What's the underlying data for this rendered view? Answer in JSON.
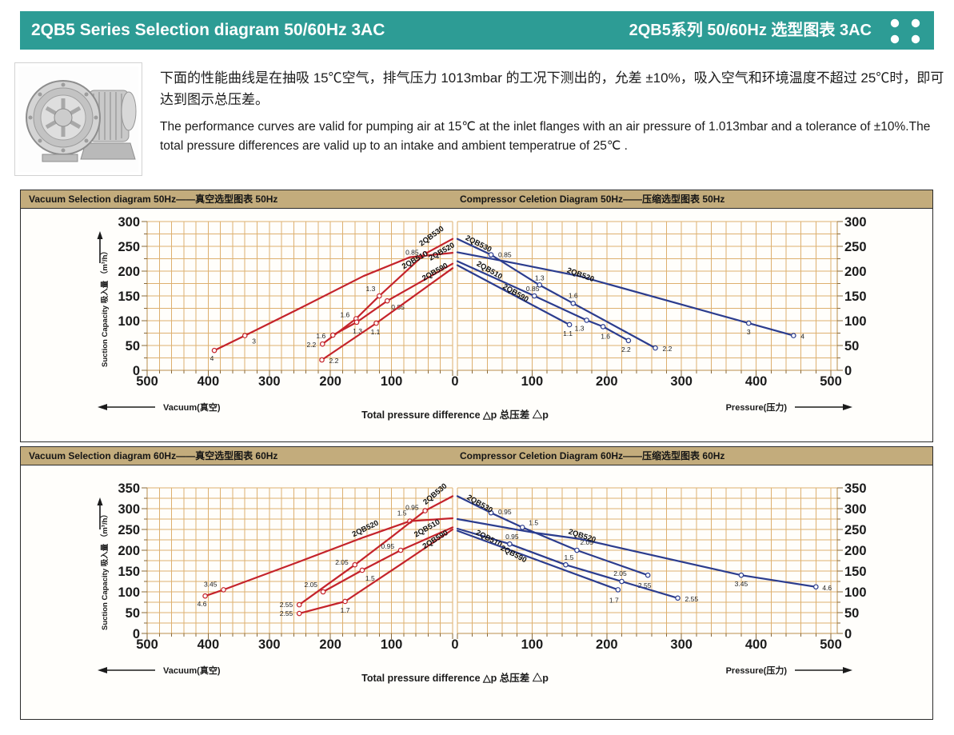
{
  "header": {
    "title_en": "2QB5 Series Selection diagram 50/60Hz 3AC",
    "title_zh": "2QB5系列 50/60Hz 选型图表 3AC"
  },
  "intro": {
    "zh": "下面的性能曲线是在抽吸 15℃空气，排气压力 1013mbar 的工况下测出的，允差 ±10%，吸入空气和环境温度不超过 25℃时，即可达到图示总压差。",
    "en": "The performance curves are valid for pumping air at 15℃ at the inlet flanges with an air pressure of 1.013mbar and a tolerance of ±10%.The total pressure differences are valid up to an intake and ambient temperatrue of 25℃ ."
  },
  "axis_labels": {
    "y": "Suction Capacity 吸入量 （m³/h）",
    "vacuum": "Vacuum(真空)",
    "pressure": "Pressure(压力)",
    "center": "Total pressure difference △p 总压差 △p",
    "zero": "0"
  },
  "colors": {
    "teal": "#2d9c95",
    "strip": "#c3ac7c",
    "grid": "#ddb06f",
    "axis": "#b98e4e",
    "tick": "#8a6a3a",
    "red": "#c4232b",
    "blue": "#2b3c8e",
    "text": "#1b1b1b",
    "border": "#2b2b2b"
  },
  "chart_data": [
    {
      "type": "line",
      "title_left": "Vacuum Selection diagram 50Hz——真空选型图表 50Hz",
      "title_right": "Compressor Celetion Diagram 50Hz——压缩选型图表 50Hz",
      "y_max": 300,
      "y_tick_step": 50,
      "grid_y_step": 25,
      "x_max": 500,
      "x_tick_step": 100,
      "grid_x_step": 20,
      "x_ticks_vacuum": [
        500,
        400,
        300,
        200,
        100
      ],
      "x_ticks_pressure": [
        100,
        200,
        300,
        400,
        500
      ],
      "xlabel_unit": "mbar",
      "ylabel_unit": "m³/h",
      "vacuum_series": [
        {
          "name": "2QB520",
          "points": [
            [
              390,
              40
            ],
            [
              340,
              70
            ],
            [
              250,
              125
            ],
            [
              146,
              190
            ],
            [
              70,
              228
            ],
            [
              0,
              237
            ]
          ],
          "markers": [
            [
              390,
              40,
              "4",
              -3,
              13,
              "m"
            ],
            [
              340,
              70,
              "3",
              9,
              10,
              "s"
            ]
          ],
          "label": [
            36,
            221,
            -30
          ]
        },
        {
          "name": "2QB530",
          "points": [
            [
              213,
              53
            ],
            [
              158,
              104
            ],
            [
              120,
              150
            ],
            [
              45,
              235
            ],
            [
              0,
              265
            ]
          ],
          "markers": [
            [
              213,
              53,
              "2.2",
              -8,
              4,
              "e"
            ],
            [
              158,
              104,
              "1.6",
              -8,
              -2,
              "e"
            ],
            [
              120,
              150,
              "1.3",
              -5,
              -6,
              "e"
            ],
            [
              45,
              235,
              "0.85",
              -8,
              1,
              "e"
            ]
          ],
          "label": [
            51,
            250,
            -36
          ]
        },
        {
          "name": "2QB510",
          "points": [
            [
              196,
              71
            ],
            [
              157,
              97
            ],
            [
              107,
              140
            ],
            [
              0,
              215
            ]
          ],
          "markers": [
            [
              196,
              71,
              "1.6",
              -9,
              4,
              "e"
            ],
            [
              157,
              97,
              "1.3",
              1,
              14,
              "m"
            ],
            [
              107,
              140,
              "0.85",
              5,
              11,
              "s"
            ]
          ],
          "label": [
            80,
            204,
            -30
          ]
        },
        {
          "name": "2QB590",
          "points": [
            [
              214,
              21
            ],
            [
              125,
              95
            ],
            [
              45,
              166
            ],
            [
              0,
              206
            ]
          ],
          "markers": [
            [
              214,
              21,
              "2.2",
              9,
              4,
              "s"
            ],
            [
              125,
              95,
              "1.1",
              -1,
              14,
              "m"
            ]
          ],
          "label": [
            47,
            180,
            -30
          ]
        }
      ],
      "pressure_series": [
        {
          "name": "2QB520",
          "points": [
            [
              0,
              238
            ],
            [
              80,
              215
            ],
            [
              163,
              190
            ],
            [
              390,
              95
            ],
            [
              450,
              70
            ]
          ],
          "markers": [
            [
              390,
              95,
              "3",
              0,
              14,
              "m"
            ],
            [
              450,
              70,
              "4",
              9,
              4,
              "s"
            ]
          ],
          "label": [
            146,
            198,
            20
          ]
        },
        {
          "name": "2QB530",
          "points": [
            [
              0,
              265
            ],
            [
              45,
              233
            ],
            [
              110,
              172
            ],
            [
              155,
              135
            ],
            [
              265,
              45
            ]
          ],
          "markers": [
            [
              45,
              233,
              "0.85",
              9,
              3,
              "s"
            ],
            [
              110,
              172,
              "1.3",
              0,
              -6,
              "m"
            ],
            [
              155,
              135,
              "1.6",
              0,
              -7,
              "m"
            ],
            [
              265,
              45,
              "2.2",
              9,
              4,
              "s"
            ]
          ],
          "label": [
            10,
            264,
            27
          ]
        },
        {
          "name": "2QB510",
          "points": [
            [
              0,
              220
            ],
            [
              103,
              150
            ],
            [
              173,
              101
            ],
            [
              195,
              88
            ],
            [
              229,
              60
            ]
          ],
          "markers": [
            [
              103,
              150,
              "0.85",
              -2,
              -6,
              "m"
            ],
            [
              173,
              101,
              "1.3",
              -9,
              13,
              "m"
            ],
            [
              195,
              88,
              "1.6",
              3,
              15,
              "m"
            ],
            [
              229,
              60,
              "2.2",
              -3,
              14,
              "m"
            ]
          ],
          "label": [
            25,
            212,
            30
          ]
        },
        {
          "name": "2QB590",
          "points": [
            [
              0,
              212
            ],
            [
              150,
              92
            ]
          ],
          "markers": [
            [
              150,
              92,
              "1.1",
              -2,
              14,
              "m"
            ]
          ],
          "label": [
            60,
            166,
            30
          ]
        }
      ]
    },
    {
      "type": "line",
      "title_left": "Vacuum Selection diagram 60Hz——真空选型图表 60Hz",
      "title_right": "Compressor Celetion Diagram 60Hz——压缩选型图表 60Hz",
      "y_max": 350,
      "y_tick_step": 50,
      "grid_y_step": 25,
      "x_max": 500,
      "x_tick_step": 100,
      "grid_x_step": 20,
      "x_ticks_vacuum": [
        500,
        400,
        300,
        200,
        100
      ],
      "x_ticks_pressure": [
        100,
        200,
        300,
        400,
        500
      ],
      "xlabel_unit": "mbar",
      "ylabel_unit": "m³/h",
      "vacuum_series": [
        {
          "name": "2QB520",
          "points": [
            [
              405,
              90
            ],
            [
              375,
              105
            ],
            [
              250,
              173
            ],
            [
              146,
              231
            ],
            [
              70,
              270
            ],
            [
              0,
              277
            ]
          ],
          "markers": [
            [
              405,
              90,
              "4.6",
              -4,
              13,
              "m"
            ],
            [
              375,
              105,
              "3.45",
              -8,
              -4,
              "e"
            ],
            [
              70,
              270,
              "1.5",
              -4,
              -7,
              "e"
            ]
          ],
          "label": [
            162,
            232,
            -26
          ]
        },
        {
          "name": "2QB530",
          "points": [
            [
              251,
              69
            ],
            [
              160,
              165
            ],
            [
              100,
              232
            ],
            [
              45,
              295
            ],
            [
              0,
              330
            ]
          ],
          "markers": [
            [
              251,
              69,
              "2.55",
              -8,
              3,
              "e"
            ],
            [
              160,
              165,
              "2.05",
              -8,
              0,
              "e"
            ],
            [
              45,
              295,
              "0.95",
              -8,
              -1,
              "e"
            ]
          ],
          "label": [
            44,
            309,
            -40
          ]
        },
        {
          "name": "2QB510",
          "points": [
            [
              212,
              100
            ],
            [
              148,
              152
            ],
            [
              85,
              200
            ],
            [
              0,
              255
            ]
          ],
          "markers": [
            [
              212,
              100,
              "2.05",
              -7,
              -6,
              "e"
            ],
            [
              148,
              152,
              "1.5",
              4,
              13,
              "s"
            ],
            [
              85,
              200,
              "0.95",
              -8,
              -2,
              "e"
            ]
          ],
          "label": [
            60,
            231,
            -30
          ]
        },
        {
          "name": "2QB590",
          "points": [
            [
              251,
              48
            ],
            [
              176,
              77
            ],
            [
              85,
              166
            ],
            [
              0,
              250
            ]
          ],
          "markers": [
            [
              251,
              48,
              "2.55",
              -8,
              3,
              "e"
            ],
            [
              176,
              77,
              "1.7",
              0,
              14,
              "m"
            ]
          ],
          "label": [
            46,
            203,
            -32
          ]
        }
      ],
      "pressure_series": [
        {
          "name": "2QB520",
          "points": [
            [
              0,
              275
            ],
            [
              100,
              243
            ],
            [
              165,
              227
            ],
            [
              380,
              140
            ],
            [
              480,
              112
            ]
          ],
          "markers": [
            [
              380,
              140,
              "3.45",
              0,
              14,
              "m"
            ],
            [
              480,
              112,
              "4.6",
              8,
              4,
              "s"
            ]
          ],
          "label": [
            148,
            240,
            18
          ]
        },
        {
          "name": "2QB530",
          "points": [
            [
              0,
              330
            ],
            [
              45,
              290
            ],
            [
              87,
              255
            ],
            [
              160,
              200
            ],
            [
              255,
              140
            ]
          ],
          "markers": [
            [
              45,
              290,
              "0.95",
              9,
              2,
              "s"
            ],
            [
              87,
              255,
              "1.5",
              8,
              -3,
              "s"
            ],
            [
              160,
              200,
              "2.05",
              4,
              -7,
              "s"
            ],
            [
              255,
              140,
              "2.55",
              -4,
              16,
              "m"
            ]
          ],
          "label": [
            12,
            324,
            30
          ]
        },
        {
          "name": "2QB510",
          "points": [
            [
              0,
              252
            ],
            [
              70,
              215
            ],
            [
              145,
              165
            ],
            [
              220,
              125
            ],
            [
              295,
              85
            ]
          ],
          "markers": [
            [
              70,
              215,
              "0.95",
              3,
              -6,
              "m"
            ],
            [
              145,
              165,
              "1.5",
              4,
              -6,
              "m"
            ],
            [
              220,
              125,
              "2.05",
              -2,
              -7,
              "m"
            ],
            [
              295,
              85,
              "2.55",
              9,
              4,
              "s"
            ]
          ],
          "label": [
            24,
            239,
            28
          ]
        },
        {
          "name": "2QB590",
          "points": [
            [
              0,
              247
            ],
            [
              215,
              105
            ]
          ],
          "markers": [
            [
              215,
              105,
              "1.7",
              -5,
              16,
              "m"
            ]
          ],
          "label": [
            57,
            202,
            28
          ]
        }
      ]
    }
  ]
}
